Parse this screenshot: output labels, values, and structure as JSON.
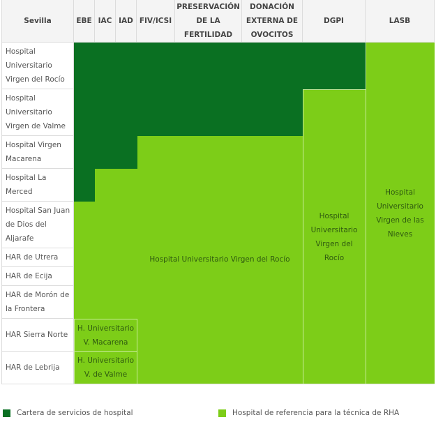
{
  "table": {
    "corner_header": "Sevilla",
    "columns": [
      "EBE",
      "IAC",
      "IAD",
      "FIV/ICSI",
      "PRESERVACIÓN DE LA FERTILIDAD",
      "DONACIÓN EXTERNA DE OVOCITOS",
      "DGPI",
      "LASB"
    ],
    "rows": [
      "Hospital Universitario Virgen del Rocío",
      "Hospital Universitario Virgen de Valme",
      "Hospital Virgen Macarena",
      "Hospital La Merced",
      "Hospital San Juan de Dios del Aljarafe",
      "HAR de Utrera",
      "HAR de Ecija",
      "HAR de Morón de la Frontera",
      "HAR Sierra Norte",
      "HAR de Lebrija"
    ],
    "referral_labels": {
      "main": "Hospital Universitario Virgen del Rocío",
      "dgpi": "Hospital Universitario Virgen del Rocío",
      "lasb": "Hospital Universitario Virgen de las Nieves",
      "sierra_norte_ebe_iad": "H. Universitario V. Macarena",
      "lebrija_ebe_iad": "H. Universitario V. de Valme"
    }
  },
  "legend": [
    {
      "label": "Cartera de servicios de hospital",
      "color": "#0a7022"
    },
    {
      "label": "Hospital de referencia para la técnica de RHA",
      "color": "#7dcd18"
    }
  ],
  "colors": {
    "own_service": "#0a7022",
    "reference": "#7dcd18",
    "header_bg": "#f4f4f4"
  }
}
